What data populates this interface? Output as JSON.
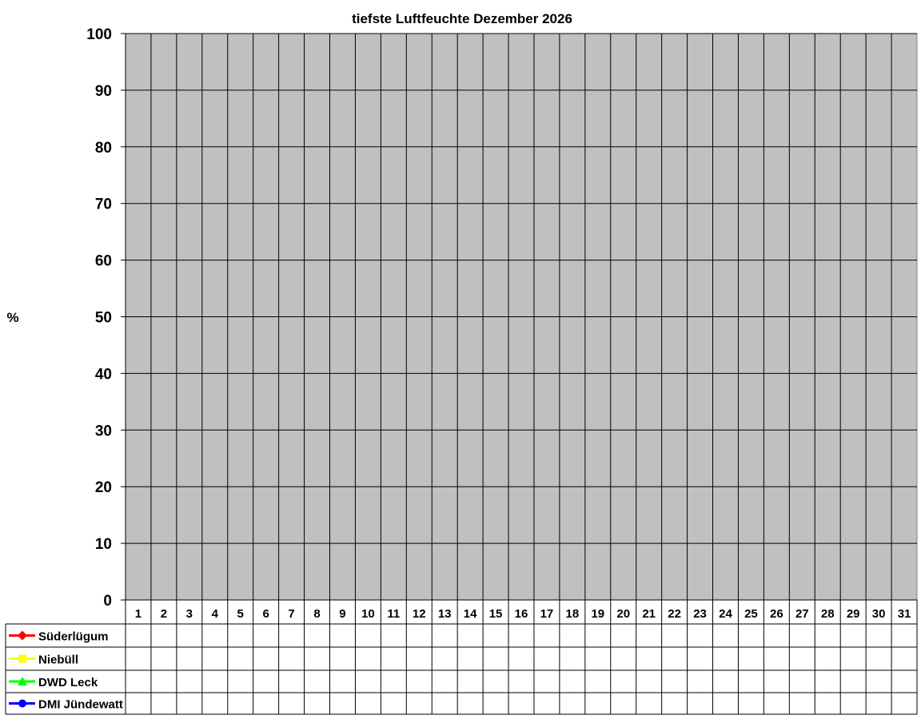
{
  "chart_data": {
    "type": "line",
    "title": "tiefste Luftfeuchte Dezember 2026",
    "ylabel": "%",
    "xlabel": "",
    "ylim": [
      0,
      100
    ],
    "yticks": [
      0,
      10,
      20,
      30,
      40,
      50,
      60,
      70,
      80,
      90,
      100
    ],
    "categories": [
      "1",
      "2",
      "3",
      "4",
      "5",
      "6",
      "7",
      "8",
      "9",
      "10",
      "11",
      "12",
      "13",
      "14",
      "15",
      "16",
      "17",
      "18",
      "19",
      "20",
      "21",
      "22",
      "23",
      "24",
      "25",
      "26",
      "27",
      "28",
      "29",
      "30",
      "31"
    ],
    "grid": true,
    "plot_background": "#c0c0c0",
    "legend_placement": "data-table-bottom",
    "series": [
      {
        "name": "Süderlügum",
        "color": "#ff0000",
        "marker": "diamond",
        "values": [
          null,
          null,
          null,
          null,
          null,
          null,
          null,
          null,
          null,
          null,
          null,
          null,
          null,
          null,
          null,
          null,
          null,
          null,
          null,
          null,
          null,
          null,
          null,
          null,
          null,
          null,
          null,
          null,
          null,
          null,
          null
        ]
      },
      {
        "name": "Niebüll",
        "color": "#ffff00",
        "marker": "square",
        "values": [
          null,
          null,
          null,
          null,
          null,
          null,
          null,
          null,
          null,
          null,
          null,
          null,
          null,
          null,
          null,
          null,
          null,
          null,
          null,
          null,
          null,
          null,
          null,
          null,
          null,
          null,
          null,
          null,
          null,
          null,
          null
        ]
      },
      {
        "name": "DWD Leck",
        "color": "#00ff00",
        "marker": "triangle",
        "values": [
          null,
          null,
          null,
          null,
          null,
          null,
          null,
          null,
          null,
          null,
          null,
          null,
          null,
          null,
          null,
          null,
          null,
          null,
          null,
          null,
          null,
          null,
          null,
          null,
          null,
          null,
          null,
          null,
          null,
          null,
          null
        ]
      },
      {
        "name": "DMI Jündewatt",
        "color": "#0000ff",
        "marker": "circle",
        "values": [
          null,
          null,
          null,
          null,
          null,
          null,
          null,
          null,
          null,
          null,
          null,
          null,
          null,
          null,
          null,
          null,
          null,
          null,
          null,
          null,
          null,
          null,
          null,
          null,
          null,
          null,
          null,
          null,
          null,
          null,
          null
        ]
      }
    ]
  }
}
